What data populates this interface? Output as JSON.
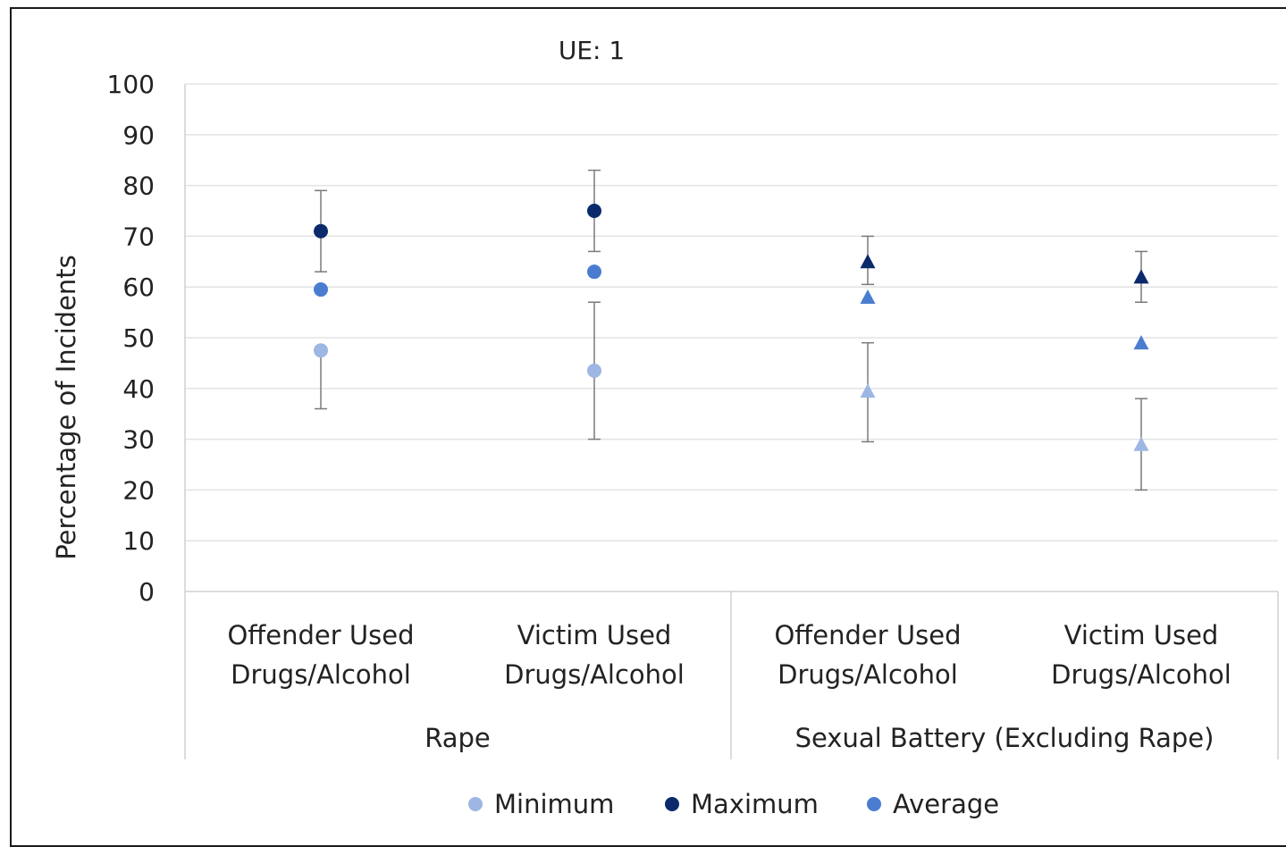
{
  "chart_data": {
    "type": "scatter",
    "title": "UE: 1",
    "ylabel": "Percentage of Incidents",
    "xlabel": "",
    "ylim": [
      0,
      100
    ],
    "yticks": [
      0,
      10,
      20,
      30,
      40,
      50,
      60,
      70,
      80,
      90,
      100
    ],
    "grid": true,
    "legend_position": "bottom",
    "groups": [
      {
        "label": "Rape",
        "marker": "circle"
      },
      {
        "label": "Sexual Battery (Excluding Rape)",
        "marker": "triangle"
      }
    ],
    "categories": [
      {
        "line1": "Offender Used",
        "line2": "Drugs/Alcohol",
        "group": 0
      },
      {
        "line1": "Victim Used",
        "line2": "Drugs/Alcohol",
        "group": 0
      },
      {
        "line1": "Offender Used",
        "line2": "Drugs/Alcohol",
        "group": 1
      },
      {
        "line1": "Victim Used",
        "line2": "Drugs/Alcohol",
        "group": 1
      }
    ],
    "series": [
      {
        "name": "Minimum",
        "color": "#9db6e4",
        "values": [
          47.5,
          43.5,
          39.5,
          29
        ],
        "err_low": [
          36,
          30,
          29.5,
          20
        ],
        "err_high": [
          null,
          57,
          49,
          38
        ]
      },
      {
        "name": "Maximum",
        "color": "#0b2a6b",
        "values": [
          71,
          75,
          65,
          62
        ],
        "err_low": [
          63,
          67,
          60.5,
          57
        ],
        "err_high": [
          79,
          83,
          70,
          67
        ]
      },
      {
        "name": "Average",
        "color": "#4a7dd0",
        "values": [
          59.5,
          63,
          58,
          49
        ],
        "err_low": [
          null,
          null,
          null,
          null
        ],
        "err_high": [
          null,
          null,
          null,
          null
        ]
      }
    ]
  }
}
